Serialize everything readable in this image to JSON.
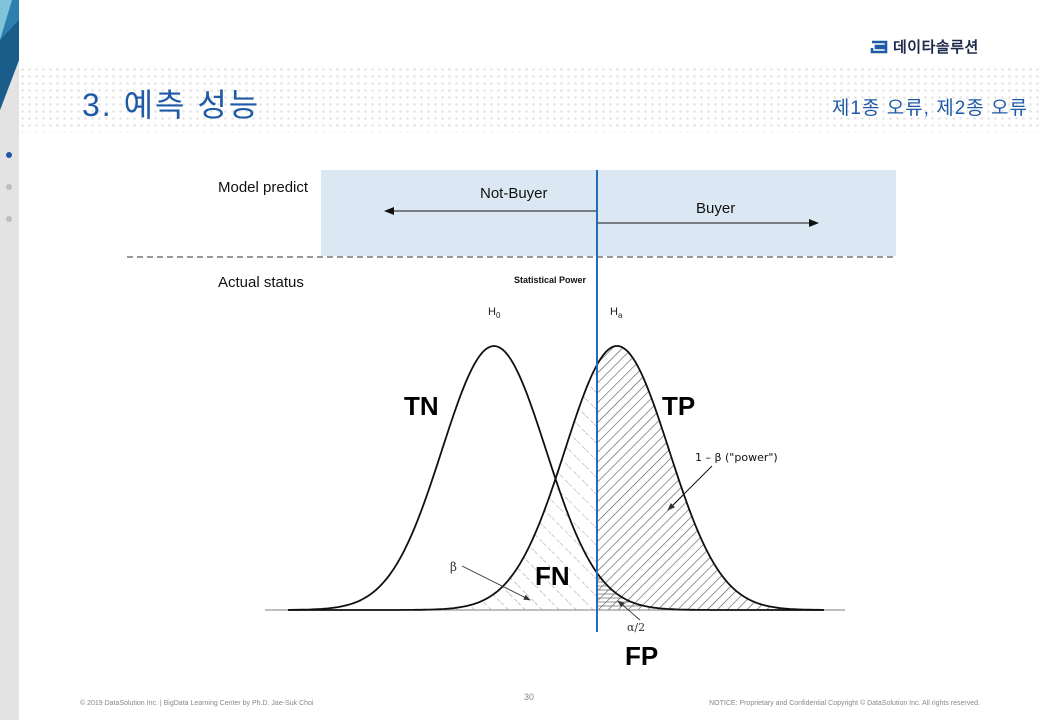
{
  "header": {
    "logo_text": "데이타솔루션",
    "title": "3. 예측 성능",
    "subtitle": "제1종 오류, 제2종 오류"
  },
  "sidebar": {
    "active_index": 0,
    "dot_count": 3
  },
  "diagram": {
    "model_predict_label": "Model predict",
    "actual_status_label": "Actual status",
    "not_buyer_label": "Not-Buyer",
    "buyer_label": "Buyer",
    "statistical_power_label": "Statistical Power",
    "h0_label": "H",
    "h0_sub": "0",
    "ha_label": "H",
    "ha_sub": "a",
    "tn_label": "TN",
    "tp_label": "TP",
    "fn_label": "FN",
    "fp_label": "FP",
    "beta_label": "β",
    "power_label": "1 – β  (\"power\")",
    "alpha_label": "α/2",
    "colors": {
      "band": "#dbe8f3",
      "threshold": "#1f6fb8",
      "curve": "#111111"
    }
  },
  "footer": {
    "left": "© 2019 DataSolution Inc. | BigData Learning Center by Ph.D. Jae-Suk Choi",
    "page": "30",
    "right": "NOTICE: Proprietary and Confidential Copyright © DataSolution Inc. All rights reserved."
  }
}
